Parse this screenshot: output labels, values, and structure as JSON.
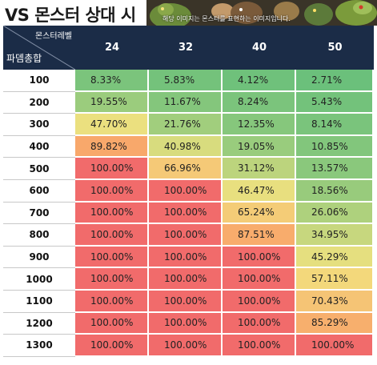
{
  "header": {
    "title": "VS 몬스터 상대 시",
    "banner_caption": "해당 이미지는 몬스터를 표현하는 이미지입니다."
  },
  "table": {
    "corner_top_label": "몬스터레벨",
    "corner_bottom_label": "파뎀총합",
    "columns": [
      "24",
      "32",
      "40",
      "50"
    ],
    "rows": [
      {
        "label": "100",
        "values": [
          "8.33%",
          "5.83%",
          "4.12%",
          "2.71%"
        ]
      },
      {
        "label": "200",
        "values": [
          "19.55%",
          "11.67%",
          "8.24%",
          "5.43%"
        ]
      },
      {
        "label": "300",
        "values": [
          "47.70%",
          "21.76%",
          "12.35%",
          "8.14%"
        ]
      },
      {
        "label": "400",
        "values": [
          "89.82%",
          "40.98%",
          "19.05%",
          "10.85%"
        ]
      },
      {
        "label": "500",
        "values": [
          "100.00%",
          "66.96%",
          "31.12%",
          "13.57%"
        ]
      },
      {
        "label": "600",
        "values": [
          "100.00%",
          "100.00%",
          "46.47%",
          "18.56%"
        ]
      },
      {
        "label": "700",
        "values": [
          "100.00%",
          "100.00%",
          "65.24%",
          "26.06%"
        ]
      },
      {
        "label": "800",
        "values": [
          "100.00%",
          "100.00%",
          "87.51%",
          "34.95%"
        ]
      },
      {
        "label": "900",
        "values": [
          "100.00%",
          "100.00%",
          "100.00%",
          "45.29%"
        ]
      },
      {
        "label": "1000",
        "values": [
          "100.00%",
          "100.00%",
          "100.00%",
          "57.11%"
        ]
      },
      {
        "label": "1100",
        "values": [
          "100.00%",
          "100.00%",
          "100.00%",
          "70.43%"
        ]
      },
      {
        "label": "1200",
        "values": [
          "100.00%",
          "100.00%",
          "100.00%",
          "85.29%"
        ]
      },
      {
        "label": "1300",
        "values": [
          "100.00%",
          "100.00%",
          "100.00%",
          "100.00%"
        ]
      }
    ]
  },
  "colors": {
    "header_bg": "#1b2c47",
    "scale_green": "#63be7b",
    "scale_yellow": "#f2e27f",
    "scale_orange": "#f8a86b",
    "scale_red": "#f16b6b"
  }
}
